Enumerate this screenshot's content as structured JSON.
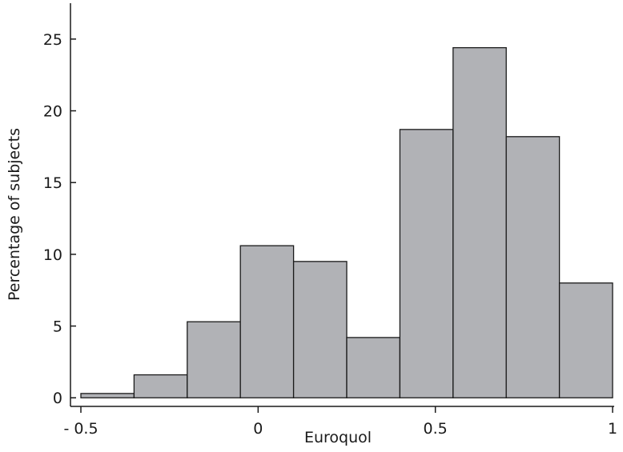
{
  "chart_data": {
    "type": "bar",
    "subtype": "histogram",
    "title": "",
    "xlabel": "Euroquol",
    "ylabel": "Percentage of subjects",
    "bins": [
      {
        "start": -0.5,
        "end": -0.35,
        "value": 0.3
      },
      {
        "start": -0.35,
        "end": -0.2,
        "value": 1.6
      },
      {
        "start": -0.2,
        "end": -0.05,
        "value": 5.3
      },
      {
        "start": -0.05,
        "end": 0.1,
        "value": 10.6
      },
      {
        "start": 0.1,
        "end": 0.25,
        "value": 9.5
      },
      {
        "start": 0.25,
        "end": 0.4,
        "value": 4.2
      },
      {
        "start": 0.4,
        "end": 0.55,
        "value": 18.7
      },
      {
        "start": 0.55,
        "end": 0.7,
        "value": 24.4
      },
      {
        "start": 0.7,
        "end": 0.85,
        "value": 18.2
      },
      {
        "start": 0.85,
        "end": 1.0,
        "value": 8.0
      }
    ],
    "x_ticks": [
      {
        "value": -0.5,
        "label": "- 0.5"
      },
      {
        "value": 0,
        "label": "0"
      },
      {
        "value": 0.5,
        "label": "0.5"
      },
      {
        "value": 1,
        "label": "1"
      }
    ],
    "y_ticks": [
      {
        "value": 0,
        "label": "0"
      },
      {
        "value": 5,
        "label": "5"
      },
      {
        "value": 10,
        "label": "10"
      },
      {
        "value": 15,
        "label": "15"
      },
      {
        "value": 20,
        "label": "20"
      },
      {
        "value": 25,
        "label": "25"
      }
    ],
    "xlim": [
      -0.5,
      1.0
    ],
    "ylim": [
      -0.6,
      27.5
    ],
    "grid": false,
    "legend": "none",
    "colors": {
      "bar_fill": "#b1b2b6",
      "bar_stroke": "#1a1a1a",
      "axis": "#1a1a1a"
    }
  }
}
